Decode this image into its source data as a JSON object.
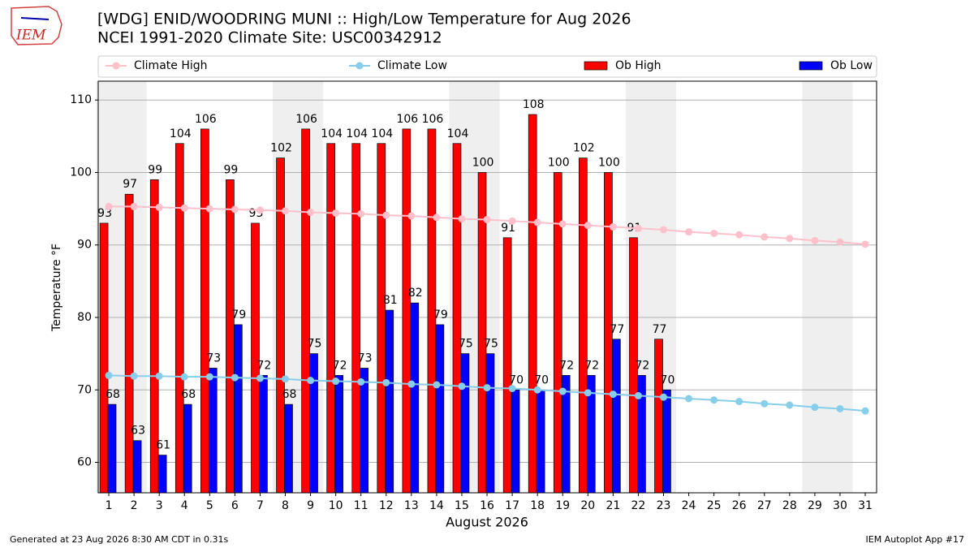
{
  "chart_data": {
    "type": "bar",
    "logo_text": "IEM",
    "title": "[WDG] ENID/WOODRING MUNI :: High/Low Temperature for Aug 2026",
    "subtitle": "NCEI 1991-2020 Climate Site: USC00342912",
    "xlabel": "August 2026",
    "ylabel": "Temperature °F",
    "x": [
      1,
      2,
      3,
      4,
      5,
      6,
      7,
      8,
      9,
      10,
      11,
      12,
      13,
      14,
      15,
      16,
      17,
      18,
      19,
      20,
      21,
      22,
      23,
      24,
      25,
      26,
      27,
      28,
      29,
      30,
      31
    ],
    "xlim": [
      0.58,
      31.45
    ],
    "xticks": [
      1,
      2,
      3,
      4,
      5,
      6,
      7,
      8,
      9,
      10,
      11,
      12,
      13,
      14,
      15,
      16,
      17,
      18,
      19,
      20,
      21,
      22,
      23,
      24,
      25,
      26,
      27,
      28,
      29,
      30,
      31
    ],
    "ylim": [
      55.8,
      112.6
    ],
    "yticks": [
      60,
      70,
      80,
      90,
      100,
      110
    ],
    "grid": true,
    "shaded_days": [
      1,
      2,
      8,
      9,
      15,
      16,
      22,
      23,
      29,
      30
    ],
    "series": [
      {
        "name": "Climate High",
        "kind": "line",
        "color": "#ffc0cb",
        "values": [
          95.3,
          95.3,
          95.2,
          95.1,
          95.0,
          94.9,
          94.8,
          94.7,
          94.5,
          94.4,
          94.3,
          94.1,
          94.0,
          93.8,
          93.6,
          93.5,
          93.3,
          93.1,
          92.9,
          92.7,
          92.5,
          92.3,
          92.1,
          91.8,
          91.6,
          91.4,
          91.1,
          90.9,
          90.6,
          90.4,
          90.1
        ]
      },
      {
        "name": "Climate Low",
        "kind": "line",
        "color": "#87ceeb",
        "values": [
          72.0,
          71.9,
          71.9,
          71.8,
          71.8,
          71.7,
          71.6,
          71.5,
          71.3,
          71.2,
          71.1,
          71.0,
          70.8,
          70.7,
          70.5,
          70.3,
          70.2,
          70.0,
          69.8,
          69.6,
          69.4,
          69.2,
          69.0,
          68.8,
          68.6,
          68.4,
          68.1,
          67.9,
          67.6,
          67.4,
          67.1
        ]
      },
      {
        "name": "Ob High",
        "kind": "bar",
        "color": "#ff0000",
        "values": [
          93,
          97,
          99,
          104,
          106,
          99,
          93,
          102,
          106,
          104,
          104,
          104,
          106,
          106,
          104,
          100,
          91,
          108,
          100,
          102,
          100,
          91,
          77,
          null,
          null,
          null,
          null,
          null,
          null,
          null,
          null
        ]
      },
      {
        "name": "Ob Low",
        "kind": "bar",
        "color": "#0000ff",
        "values": [
          68,
          63,
          61,
          68,
          73,
          79,
          72,
          68,
          75,
          72,
          73,
          81,
          82,
          79,
          75,
          75,
          70,
          70,
          72,
          72,
          77,
          72,
          70,
          null,
          null,
          null,
          null,
          null,
          null,
          null,
          null
        ]
      }
    ],
    "footer_left": "Generated at 23 Aug 2026 8:30 AM CDT in 0.31s",
    "footer_right": "IEM Autoplot App #17"
  }
}
